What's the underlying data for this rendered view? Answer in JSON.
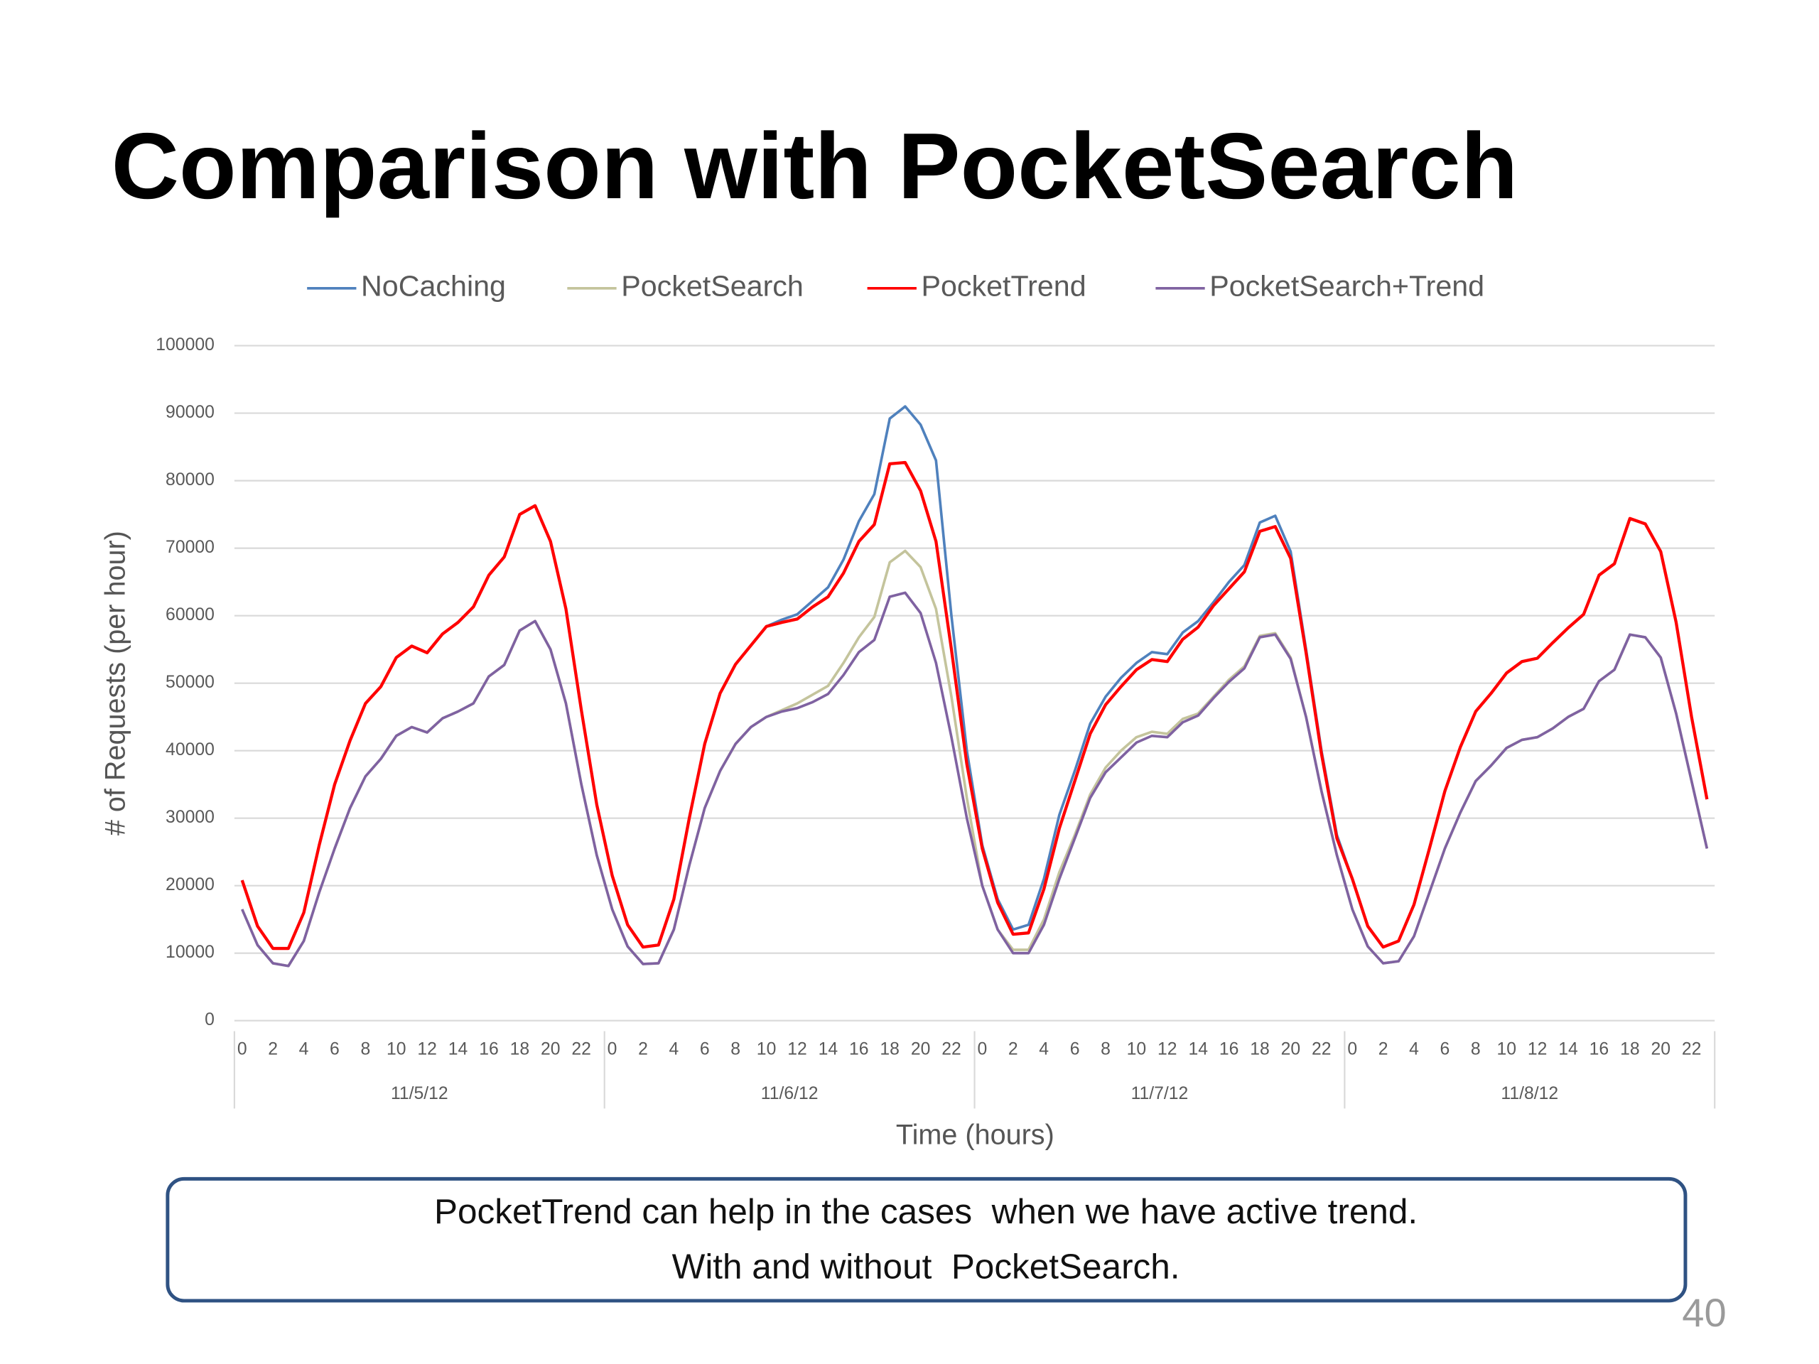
{
  "title": "Comparison with PocketSearch",
  "chart_data": {
    "type": "line",
    "legend_position": "top",
    "grid": true,
    "xlabel": "Time (hours)",
    "ylabel": "# of Requests (per hour)",
    "ylim": [
      0,
      100000
    ],
    "yticks": [
      0,
      10000,
      20000,
      30000,
      40000,
      50000,
      60000,
      70000,
      80000,
      90000,
      100000
    ],
    "category_groups": [
      "11/5/12",
      "11/6/12",
      "11/7/12",
      "11/8/12"
    ],
    "categories": [
      0,
      null,
      2,
      null,
      4,
      null,
      6,
      null,
      8,
      null,
      10,
      null,
      12,
      null,
      14,
      null,
      16,
      null,
      18,
      null,
      20,
      null,
      22,
      null,
      0,
      null,
      2,
      null,
      4,
      null,
      6,
      null,
      8,
      null,
      10,
      null,
      12,
      null,
      14,
      null,
      16,
      null,
      18,
      null,
      20,
      null,
      22,
      null,
      0,
      null,
      2,
      null,
      4,
      null,
      6,
      null,
      8,
      null,
      10,
      null,
      12,
      null,
      14,
      null,
      16,
      null,
      18,
      null,
      20,
      null,
      22,
      null,
      0,
      null,
      2,
      null,
      4,
      null,
      6,
      null,
      8,
      null,
      10,
      null,
      12,
      null,
      14,
      null,
      16,
      null,
      18,
      null,
      20,
      null,
      22,
      null
    ],
    "series": [
      {
        "name": "NoCaching",
        "color": "#4f81bd",
        "values": [
          20800,
          14000,
          10700,
          10700,
          16000,
          26000,
          35000,
          41500,
          47000,
          49500,
          53800,
          55500,
          54500,
          57300,
          59000,
          61300,
          66000,
          68700,
          75000,
          76300,
          71000,
          61000,
          46000,
          32000,
          21500,
          14200,
          10900,
          11200,
          18000,
          30000,
          41000,
          48500,
          52800,
          55600,
          58400,
          59400,
          60200,
          62200,
          64200,
          68300,
          74000,
          78000,
          89200,
          91000,
          88300,
          83000,
          60000,
          40000,
          26000,
          18000,
          13500,
          14200,
          21000,
          30500,
          37000,
          44000,
          48000,
          50800,
          53000,
          54600,
          54300,
          57500,
          59200,
          62000,
          65000,
          67500,
          73800,
          74800,
          69500,
          55000,
          40000,
          27500,
          21000,
          14000,
          10900,
          11800,
          17200,
          25500,
          34000,
          40500,
          45800,
          48500,
          51500,
          53200,
          53700,
          56000,
          58200,
          60200,
          66000,
          67700,
          74400,
          73600,
          69500,
          59000,
          45000,
          32800
        ]
      },
      {
        "name": "PocketSearch",
        "color": "#c4c49c",
        "values": [
          16500,
          11200,
          8500,
          8100,
          11800,
          19000,
          25500,
          31500,
          36200,
          38800,
          42200,
          43500,
          42700,
          44800,
          45800,
          47000,
          51000,
          52700,
          57800,
          59200,
          55000,
          47000,
          35000,
          24500,
          16500,
          11000,
          8400,
          8500,
          13500,
          23000,
          31500,
          37000,
          41000,
          43500,
          45000,
          46000,
          47000,
          48300,
          49600,
          53000,
          56800,
          59800,
          67900,
          69600,
          67200,
          61000,
          48000,
          33000,
          20000,
          13500,
          10500,
          10500,
          15000,
          22000,
          27500,
          33500,
          37500,
          40000,
          42000,
          42800,
          42500,
          44700,
          45500,
          48000,
          50500,
          52500,
          57000,
          57400,
          53800,
          45000,
          34000,
          24500,
          16500,
          11000,
          8500,
          8800,
          12500,
          19000,
          25500,
          30800,
          35500,
          37800,
          40400,
          41600,
          42000,
          43300,
          45000,
          46200,
          50300,
          52000,
          57200,
          56800,
          53800,
          45500,
          35500,
          25500
        ]
      },
      {
        "name": "PocketTrend",
        "color": "#ff0000",
        "values": [
          20800,
          14000,
          10700,
          10700,
          16000,
          26000,
          35000,
          41500,
          47000,
          49500,
          53800,
          55500,
          54500,
          57300,
          59000,
          61300,
          66000,
          68700,
          75000,
          76300,
          71000,
          61000,
          46000,
          32000,
          21500,
          14200,
          10900,
          11200,
          18000,
          30000,
          41000,
          48500,
          52800,
          55600,
          58400,
          59000,
          59500,
          61300,
          62800,
          66300,
          71000,
          73500,
          82500,
          82700,
          78500,
          71000,
          55000,
          38000,
          25500,
          17500,
          12800,
          13000,
          19500,
          28500,
          35500,
          42500,
          46800,
          49500,
          52000,
          53500,
          53200,
          56500,
          58300,
          61500,
          64000,
          66500,
          72500,
          73200,
          68500,
          54500,
          39500,
          27000,
          21000,
          14000,
          10900,
          11800,
          17200,
          25500,
          34000,
          40500,
          45800,
          48500,
          51500,
          53200,
          53700,
          56000,
          58200,
          60200,
          66000,
          67700,
          74400,
          73600,
          69500,
          59000,
          45000,
          32800
        ]
      },
      {
        "name": "PocketSearch+Trend",
        "color": "#7f62a1",
        "values": [
          16500,
          11200,
          8500,
          8100,
          11800,
          19000,
          25500,
          31500,
          36200,
          38800,
          42200,
          43500,
          42700,
          44800,
          45800,
          47000,
          51000,
          52700,
          57800,
          59200,
          55000,
          47000,
          35000,
          24500,
          16500,
          11000,
          8400,
          8500,
          13500,
          23000,
          31500,
          37000,
          41000,
          43500,
          45000,
          45800,
          46300,
          47200,
          48400,
          51200,
          54600,
          56400,
          62800,
          63400,
          60400,
          53000,
          42000,
          30000,
          20000,
          13500,
          10000,
          10000,
          14200,
          21000,
          27000,
          33000,
          36800,
          39000,
          41200,
          42200,
          42000,
          44200,
          45200,
          47800,
          50200,
          52200,
          56800,
          57200,
          53600,
          45000,
          34000,
          24500,
          16500,
          11000,
          8500,
          8800,
          12500,
          19000,
          25500,
          30800,
          35500,
          37800,
          40400,
          41600,
          42000,
          43300,
          45000,
          46200,
          50300,
          52000,
          57200,
          56800,
          53800,
          45500,
          35500,
          25500
        ]
      }
    ]
  },
  "note": [
    "PocketTrend can help in the cases  when we have active trend.",
    "With and without  PocketSearch."
  ],
  "page_number": "40"
}
